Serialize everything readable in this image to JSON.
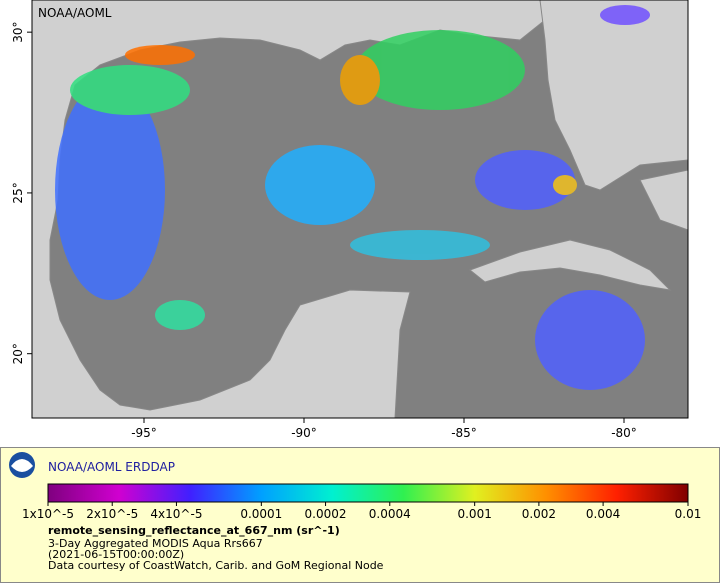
{
  "map": {
    "corner_label": "NOAA/AOML",
    "lon_lim": [
      -98.5,
      -78
    ],
    "lat_lim": [
      18,
      31
    ],
    "lon_ticks": [
      {
        "value": -95,
        "label": "-95°"
      },
      {
        "value": -90,
        "label": "-90°"
      },
      {
        "value": -85,
        "label": "-85°"
      },
      {
        "value": -80,
        "label": "-80°"
      }
    ],
    "lat_ticks": [
      {
        "value": 20,
        "label": "20°"
      },
      {
        "value": 25,
        "label": "25°"
      },
      {
        "value": 30,
        "label": "30°"
      }
    ]
  },
  "legend": {
    "title": "NOAA/AOML ERDDAP",
    "colorbar": {
      "lim": [
        1e-05,
        0.01
      ],
      "log_scale": true,
      "colors": [
        "#7f007f",
        "#d000d0",
        "#4020ff",
        "#00a0ff",
        "#00f0d0",
        "#30f050",
        "#e0f020",
        "#ff9000",
        "#ff2000",
        "#800000"
      ],
      "ticks": [
        {
          "value": 1e-05,
          "label": "1x10^-5"
        },
        {
          "value": 2e-05,
          "label": "2x10^-5"
        },
        {
          "value": 4e-05,
          "label": "4x10^-5"
        },
        0.0001,
        0.0002,
        0.0004,
        0.001,
        0.002,
        0.004,
        0.01
      ]
    },
    "variable": "remote_sensing_reflectance_at_667_nm (sr^-1)",
    "dataset": "3-Day Aggregated MODIS Aqua Rrs667",
    "time": "(2021-06-15T00:00:00Z)",
    "credit": "Data courtesy of CoastWatch, Carib. and GoM Regional Node"
  }
}
